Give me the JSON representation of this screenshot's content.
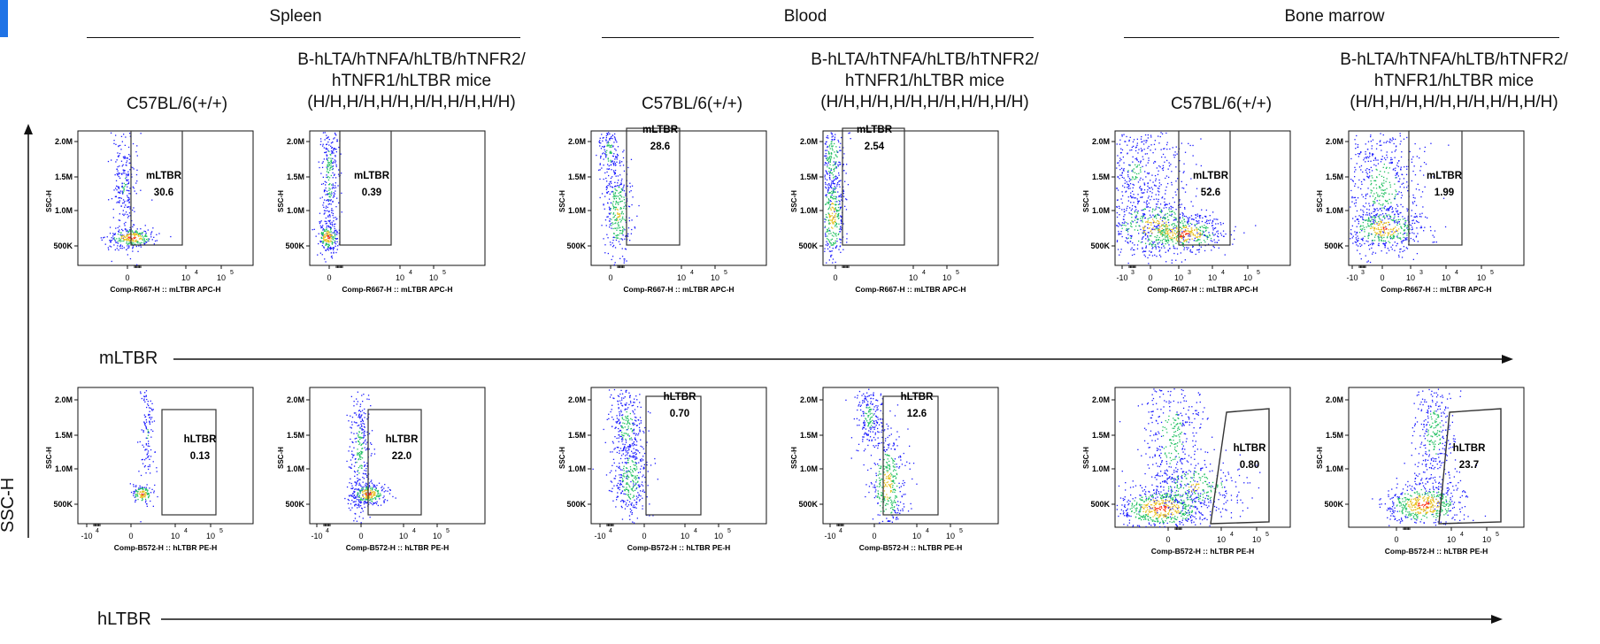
{
  "tissues": [
    "Spleen",
    "Blood",
    "Bone marrow"
  ],
  "samples": {
    "wt": "C57BL/6(+/+)",
    "hu_line1": "B-hLTA/hTNFA/hLTB/hTNFR2/",
    "hu_line2": "hTNFR1/hLTBR mice",
    "hu_line3": "(H/H,H/H,H/H,H/H,H/H,H/H)"
  },
  "axes": {
    "y_big": "SSC-H",
    "row1_x_big": "mLTBR",
    "row2_x_big": "hLTBR",
    "y_small": "SSC-H",
    "x_mltbr": "Comp-R667-H :: mLTBR APC-H",
    "x_hltbr": "Comp-B572-H :: hLTBR  PE-H"
  },
  "colors": {
    "accent": "#1f73e6",
    "low": "#1a1aff",
    "mid": "#20c060",
    "high": "#ff3010"
  },
  "chart_data": [
    {
      "type": "scatter",
      "tissue": "Spleen",
      "sample": "C57BL/6(+/+)",
      "marker": "mLTBR",
      "gate_label": "mLTBR",
      "gate_value": "30.6",
      "ylabel": "SSC-H",
      "xlabel": "Comp-R667-H :: mLTBR APC-H",
      "y_ticks": [
        "2.0M",
        "1.5M",
        "1.0M",
        "500K"
      ],
      "x_ticks": [
        "0",
        "10^4",
        "10^5"
      ]
    },
    {
      "type": "scatter",
      "tissue": "Spleen",
      "sample": "B-hLTA/hTNFA/hLTB/hTNFR2/hTNFR1/hLTBR mice",
      "marker": "mLTBR",
      "gate_label": "mLTBR",
      "gate_value": "0.39",
      "ylabel": "SSC-H",
      "xlabel": "Comp-R667-H :: mLTBR APC-H",
      "y_ticks": [
        "2.0M",
        "1.5M",
        "1.0M",
        "500K"
      ],
      "x_ticks": [
        "0",
        "10^4",
        "10^5"
      ]
    },
    {
      "type": "scatter",
      "tissue": "Blood",
      "sample": "C57BL/6(+/+)",
      "marker": "mLTBR",
      "gate_label": "mLTBR",
      "gate_value": "28.6",
      "ylabel": "SSC-H",
      "xlabel": "Comp-R667-H :: mLTBR APC-H",
      "y_ticks": [
        "2.0M",
        "1.5M",
        "1.0M",
        "500K"
      ],
      "x_ticks": [
        "0",
        "10^4",
        "10^5"
      ]
    },
    {
      "type": "scatter",
      "tissue": "Blood",
      "sample": "B-hLTA/hTNFA/hLTB/hTNFR2/hTNFR1/hLTBR mice",
      "marker": "mLTBR",
      "gate_label": "mLTBR",
      "gate_value": "2.54",
      "ylabel": "SSC-H",
      "xlabel": "Comp-R667-H :: mLTBR APC-H",
      "y_ticks": [
        "2.0M",
        "1.5M",
        "1.0M",
        "500K"
      ],
      "x_ticks": [
        "0",
        "10^4",
        "10^5"
      ]
    },
    {
      "type": "scatter",
      "tissue": "Bone marrow",
      "sample": "C57BL/6(+/+)",
      "marker": "mLTBR",
      "gate_label": "mLTBR",
      "gate_value": "52.6",
      "ylabel": "SSC-H",
      "xlabel": "Comp-R667-H :: mLTBR APC-H",
      "y_ticks": [
        "2.0M",
        "1.5M",
        "1.0M",
        "500K"
      ],
      "x_ticks": [
        "-10^3",
        "0",
        "10^3",
        "10^4",
        "10^5"
      ]
    },
    {
      "type": "scatter",
      "tissue": "Bone marrow",
      "sample": "B-hLTA/hTNFA/hLTB/hTNFR2/hTNFR1/hLTBR mice",
      "marker": "mLTBR",
      "gate_label": "mLTBR",
      "gate_value": "1.99",
      "ylabel": "SSC-H",
      "xlabel": "Comp-R667-H :: mLTBR APC-H",
      "y_ticks": [
        "2.0M",
        "1.5M",
        "1.0M",
        "500K"
      ],
      "x_ticks": [
        "-10^3",
        "0",
        "10^3",
        "10^4",
        "10^5"
      ]
    },
    {
      "type": "scatter",
      "tissue": "Spleen",
      "sample": "C57BL/6(+/+)",
      "marker": "hLTBR",
      "gate_label": "hLTBR",
      "gate_value": "0.13",
      "ylabel": "SSC-H",
      "xlabel": "Comp-B572-H :: hLTBR  PE-H",
      "y_ticks": [
        "2.0M",
        "1.5M",
        "1.0M",
        "500K"
      ],
      "x_ticks": [
        "-10^4",
        "0",
        "10^4",
        "10^5"
      ]
    },
    {
      "type": "scatter",
      "tissue": "Spleen",
      "sample": "B-hLTA/hTNFA/hLTB/hTNFR2/hTNFR1/hLTBR mice",
      "marker": "hLTBR",
      "gate_label": "hLTBR",
      "gate_value": "22.0",
      "ylabel": "SSC-H",
      "xlabel": "Comp-B572-H :: hLTBR  PE-H",
      "y_ticks": [
        "2.0M",
        "1.5M",
        "1.0M",
        "500K"
      ],
      "x_ticks": [
        "-10^4",
        "0",
        "10^4",
        "10^5"
      ]
    },
    {
      "type": "scatter",
      "tissue": "Blood",
      "sample": "C57BL/6(+/+)",
      "marker": "hLTBR",
      "gate_label": "hLTBR",
      "gate_value": "0.70",
      "ylabel": "SSC-H",
      "xlabel": "Comp-B572-H :: hLTBR  PE-H",
      "y_ticks": [
        "2.0M",
        "1.5M",
        "1.0M",
        "500K"
      ],
      "x_ticks": [
        "-10^4",
        "0",
        "10^4",
        "10^5"
      ]
    },
    {
      "type": "scatter",
      "tissue": "Blood",
      "sample": "B-hLTA/hTNFA/hLTB/hTNFR2/hTNFR1/hLTBR mice",
      "marker": "hLTBR",
      "gate_label": "hLTBR",
      "gate_value": "12.6",
      "ylabel": "SSC-H",
      "xlabel": "Comp-B572-H :: hLTBR  PE-H",
      "y_ticks": [
        "2.0M",
        "1.5M",
        "1.0M",
        "500K"
      ],
      "x_ticks": [
        "-10^4",
        "0",
        "10^4",
        "10^5"
      ]
    },
    {
      "type": "scatter",
      "tissue": "Bone marrow",
      "sample": "C57BL/6(+/+)",
      "marker": "hLTBR",
      "gate_label": "hLTBR",
      "gate_value": "0.80",
      "ylabel": "SSC-H",
      "xlabel": "Comp-B572-H :: hLTBR  PE-H",
      "y_ticks": [
        "2.0M",
        "1.5M",
        "1.0M",
        "500K"
      ],
      "x_ticks": [
        "0",
        "10^4",
        "10^5"
      ]
    },
    {
      "type": "scatter",
      "tissue": "Bone marrow",
      "sample": "B-hLTA/hTNFA/hLTB/hTNFR2/hTNFR1/hLTBR mice",
      "marker": "hLTBR",
      "gate_label": "hLTBR",
      "gate_value": "23.7",
      "ylabel": "SSC-H",
      "xlabel": "Comp-B572-H :: hLTBR  PE-H",
      "y_ticks": [
        "2.0M",
        "1.5M",
        "1.0M",
        "500K"
      ],
      "x_ticks": [
        "0",
        "10^4",
        "10^5"
      ]
    }
  ]
}
